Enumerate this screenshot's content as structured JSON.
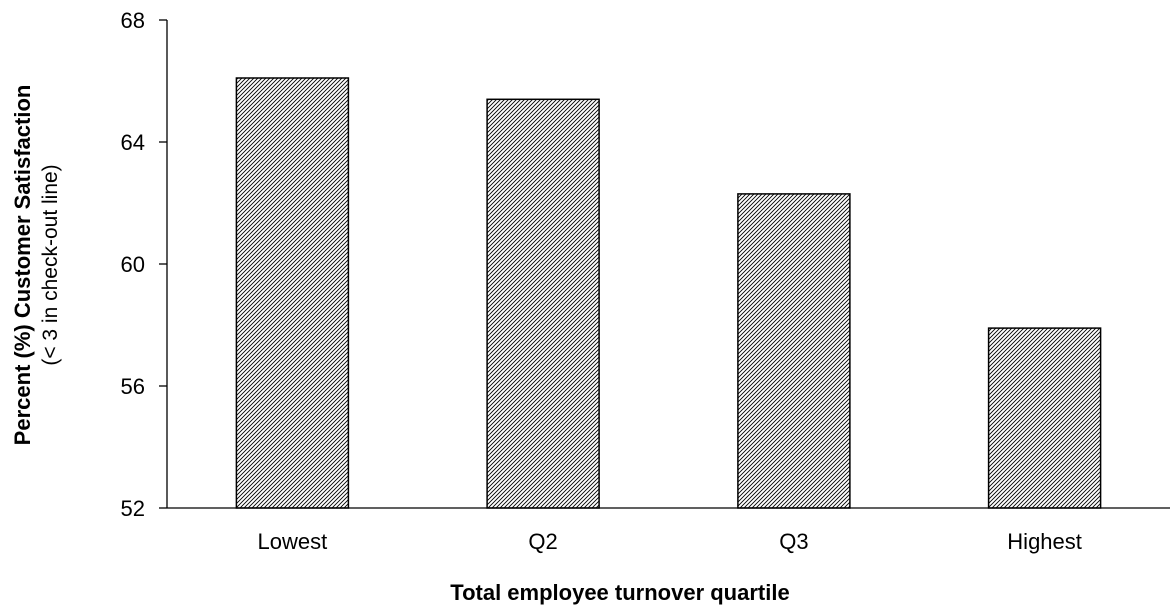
{
  "chart_data": {
    "type": "bar",
    "title": "",
    "categories": [
      "Lowest",
      "Q2",
      "Q3",
      "Highest"
    ],
    "values": [
      66.1,
      65.4,
      62.3,
      57.9
    ],
    "xlabel": "Total employee turnover quartile",
    "ylabel": "Percent (%) Customer Satisfaction",
    "ylabel_sub": "(< 3 in check-out line)",
    "ylim": [
      52,
      68
    ],
    "yticks": [
      52,
      56,
      60,
      64,
      68
    ],
    "bar_fill": "diagonal-hatch",
    "bar_color": "#000000",
    "grid": false,
    "legend": "none"
  }
}
